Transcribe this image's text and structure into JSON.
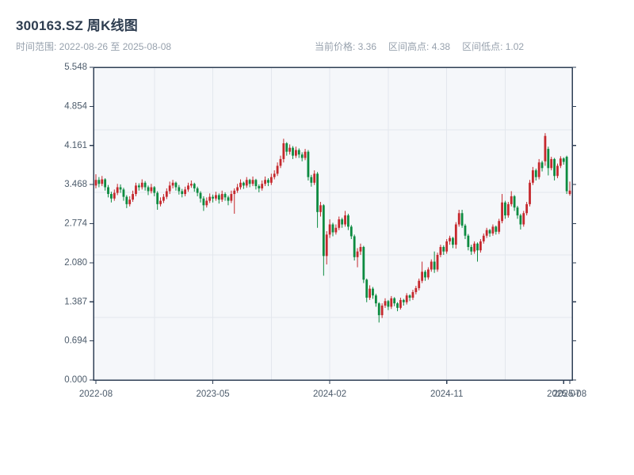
{
  "header": {
    "title": "300163.SZ 周K线图",
    "subtitle": "时间范围: 2022-08-26 至 2025-08-08",
    "stats": [
      "当前价格: 3.36",
      "区间高点: 4.38",
      "区间低点: 1.02"
    ]
  },
  "chart_data": {
    "type": "candlestick",
    "title": "300163.SZ 周K线图",
    "frequency": "weekly",
    "date_range": {
      "start": "2022-08-26",
      "end": "2025-08-08"
    },
    "current_price": 3.36,
    "range_high": 4.38,
    "range_low": 1.02,
    "ylim": [
      0,
      5.548
    ],
    "y_tick_labels": [
      "0.000",
      "0.694",
      "1.387",
      "2.080",
      "2.774",
      "3.468",
      "4.161",
      "4.854",
      "5.548"
    ],
    "x_ticks": [
      {
        "label": "2022-08",
        "week": 0
      },
      {
        "label": "2023-05",
        "week": 38
      },
      {
        "label": "2024-02",
        "week": 76
      },
      {
        "label": "2024-11",
        "week": 114
      },
      {
        "label": "2025-07",
        "week": 152
      },
      {
        "label": "2025-08",
        "week": 154
      }
    ],
    "grid": {
      "v_weeks": [
        19,
        38,
        57,
        76,
        95,
        114,
        133
      ],
      "h_value_fracs": [
        0.2,
        0.4,
        0.6,
        0.8
      ]
    },
    "colors": {
      "up": "#c5282d",
      "down": "#0c8b40",
      "plot_bg": "#f5f7fa",
      "grid": "#e3e7ed",
      "spine": "#2f3f55",
      "tick_label": "#4c5b6b",
      "title": "#2e3d50",
      "muted": "#97a1ad"
    },
    "candles": [
      [
        3.45,
        3.65,
        3.4,
        3.55
      ],
      [
        3.55,
        3.6,
        3.42,
        3.48
      ],
      [
        3.48,
        3.62,
        3.44,
        3.56
      ],
      [
        3.56,
        3.58,
        3.36,
        3.42
      ],
      [
        3.42,
        3.46,
        3.24,
        3.3
      ],
      [
        3.3,
        3.34,
        3.15,
        3.22
      ],
      [
        3.22,
        3.38,
        3.18,
        3.32
      ],
      [
        3.32,
        3.48,
        3.28,
        3.42
      ],
      [
        3.42,
        3.47,
        3.32,
        3.38
      ],
      [
        3.38,
        3.41,
        3.18,
        3.25
      ],
      [
        3.25,
        3.28,
        3.05,
        3.12
      ],
      [
        3.12,
        3.26,
        3.08,
        3.2
      ],
      [
        3.2,
        3.36,
        3.16,
        3.3
      ],
      [
        3.3,
        3.5,
        3.26,
        3.45
      ],
      [
        3.45,
        3.49,
        3.36,
        3.42
      ],
      [
        3.42,
        3.56,
        3.38,
        3.5
      ],
      [
        3.5,
        3.53,
        3.36,
        3.42
      ],
      [
        3.42,
        3.45,
        3.28,
        3.35
      ],
      [
        3.35,
        3.48,
        3.31,
        3.42
      ],
      [
        3.42,
        3.44,
        3.26,
        3.32
      ],
      [
        3.32,
        3.35,
        3.02,
        3.12
      ],
      [
        3.12,
        3.24,
        3.08,
        3.18
      ],
      [
        3.18,
        3.3,
        3.14,
        3.25
      ],
      [
        3.25,
        3.4,
        3.21,
        3.35
      ],
      [
        3.35,
        3.52,
        3.3,
        3.45
      ],
      [
        3.45,
        3.55,
        3.4,
        3.5
      ],
      [
        3.5,
        3.52,
        3.36,
        3.42
      ],
      [
        3.42,
        3.46,
        3.29,
        3.35
      ],
      [
        3.35,
        3.39,
        3.24,
        3.3
      ],
      [
        3.3,
        3.43,
        3.26,
        3.38
      ],
      [
        3.38,
        3.5,
        3.34,
        3.45
      ],
      [
        3.45,
        3.54,
        3.41,
        3.48
      ],
      [
        3.48,
        3.5,
        3.34,
        3.4
      ],
      [
        3.4,
        3.43,
        3.26,
        3.32
      ],
      [
        3.32,
        3.35,
        3.15,
        3.22
      ],
      [
        3.22,
        3.26,
        3.0,
        3.1
      ],
      [
        3.1,
        3.24,
        3.06,
        3.18
      ],
      [
        3.18,
        3.31,
        3.14,
        3.25
      ],
      [
        3.25,
        3.29,
        3.15,
        3.22
      ],
      [
        3.22,
        3.34,
        3.18,
        3.28
      ],
      [
        3.28,
        3.31,
        3.13,
        3.2
      ],
      [
        3.2,
        3.36,
        3.16,
        3.3
      ],
      [
        3.3,
        3.33,
        3.18,
        3.24
      ],
      [
        3.24,
        3.27,
        3.1,
        3.18
      ],
      [
        3.18,
        3.36,
        3.14,
        3.3
      ],
      [
        3.3,
        3.4,
        2.95,
        3.36
      ],
      [
        3.36,
        3.48,
        3.32,
        3.42
      ],
      [
        3.42,
        3.56,
        3.38,
        3.5
      ],
      [
        3.5,
        3.52,
        3.39,
        3.45
      ],
      [
        3.45,
        3.6,
        3.41,
        3.55
      ],
      [
        3.55,
        3.57,
        3.42,
        3.48
      ],
      [
        3.48,
        3.61,
        3.44,
        3.55
      ],
      [
        3.55,
        3.57,
        3.38,
        3.44
      ],
      [
        3.44,
        3.47,
        3.33,
        3.4
      ],
      [
        3.4,
        3.54,
        3.36,
        3.48
      ],
      [
        3.48,
        3.61,
        3.44,
        3.55
      ],
      [
        3.55,
        3.58,
        3.44,
        3.5
      ],
      [
        3.5,
        3.66,
        3.46,
        3.6
      ],
      [
        3.6,
        3.72,
        3.56,
        3.66
      ],
      [
        3.66,
        3.86,
        3.62,
        3.8
      ],
      [
        3.8,
        3.98,
        3.76,
        3.92
      ],
      [
        3.92,
        4.28,
        3.86,
        4.2
      ],
      [
        4.2,
        4.22,
        3.98,
        4.05
      ],
      [
        4.05,
        4.18,
        4.0,
        4.12
      ],
      [
        4.12,
        4.15,
        3.92,
        3.98
      ],
      [
        3.98,
        4.14,
        3.94,
        4.08
      ],
      [
        4.08,
        4.11,
        3.94,
        4.0
      ],
      [
        4.0,
        4.04,
        3.88,
        3.94
      ],
      [
        3.94,
        4.1,
        3.9,
        4.05
      ],
      [
        4.05,
        4.08,
        3.54,
        3.6
      ],
      [
        3.6,
        3.64,
        3.43,
        3.5
      ],
      [
        3.5,
        3.72,
        3.46,
        3.66
      ],
      [
        3.66,
        3.69,
        2.7,
        2.98
      ],
      [
        2.98,
        3.16,
        2.9,
        3.1
      ],
      [
        3.1,
        3.12,
        1.85,
        2.2
      ],
      [
        2.2,
        2.64,
        2.05,
        2.58
      ],
      [
        2.58,
        2.85,
        2.52,
        2.76
      ],
      [
        2.76,
        2.79,
        2.55,
        2.62
      ],
      [
        2.62,
        2.76,
        2.58,
        2.7
      ],
      [
        2.7,
        2.9,
        2.66,
        2.85
      ],
      [
        2.85,
        2.88,
        2.7,
        2.76
      ],
      [
        2.76,
        3.0,
        2.72,
        2.92
      ],
      [
        2.92,
        2.95,
        2.66,
        2.72
      ],
      [
        2.72,
        2.75,
        2.5,
        2.55
      ],
      [
        2.55,
        2.58,
        2.12,
        2.18
      ],
      [
        2.18,
        2.34,
        2.0,
        2.28
      ],
      [
        2.28,
        2.42,
        2.22,
        2.36
      ],
      [
        2.36,
        2.38,
        1.72,
        1.78
      ],
      [
        1.78,
        1.8,
        1.38,
        1.46
      ],
      [
        1.46,
        1.68,
        1.42,
        1.62
      ],
      [
        1.62,
        1.65,
        1.44,
        1.5
      ],
      [
        1.5,
        1.53,
        1.3,
        1.36
      ],
      [
        1.36,
        1.38,
        1.02,
        1.15
      ],
      [
        1.15,
        1.36,
        1.1,
        1.32
      ],
      [
        1.32,
        1.45,
        1.28,
        1.4
      ],
      [
        1.4,
        1.42,
        1.24,
        1.3
      ],
      [
        1.3,
        1.49,
        1.26,
        1.45
      ],
      [
        1.45,
        1.47,
        1.31,
        1.36
      ],
      [
        1.36,
        1.38,
        1.22,
        1.28
      ],
      [
        1.28,
        1.46,
        1.25,
        1.42
      ],
      [
        1.42,
        1.44,
        1.32,
        1.38
      ],
      [
        1.38,
        1.54,
        1.34,
        1.5
      ],
      [
        1.5,
        1.52,
        1.4,
        1.46
      ],
      [
        1.46,
        1.6,
        1.42,
        1.56
      ],
      [
        1.56,
        1.67,
        1.52,
        1.63
      ],
      [
        1.63,
        1.8,
        1.59,
        1.76
      ],
      [
        1.76,
        2.1,
        1.72,
        1.92
      ],
      [
        1.92,
        1.95,
        1.76,
        1.82
      ],
      [
        1.82,
        2.0,
        1.78,
        1.96
      ],
      [
        1.96,
        2.14,
        1.92,
        2.1
      ],
      [
        2.1,
        2.28,
        1.9,
        1.96
      ],
      [
        1.96,
        2.26,
        1.92,
        2.22
      ],
      [
        2.22,
        2.4,
        2.18,
        2.36
      ],
      [
        2.36,
        2.39,
        2.22,
        2.28
      ],
      [
        2.28,
        2.5,
        2.24,
        2.46
      ],
      [
        2.46,
        2.56,
        2.4,
        2.52
      ],
      [
        2.52,
        2.54,
        2.34,
        2.4
      ],
      [
        2.4,
        2.8,
        2.33,
        2.76
      ],
      [
        2.76,
        3.02,
        2.72,
        2.96
      ],
      [
        2.96,
        3.02,
        2.7,
        2.74
      ],
      [
        2.74,
        2.77,
        2.5,
        2.56
      ],
      [
        2.56,
        2.59,
        2.3,
        2.36
      ],
      [
        2.36,
        2.4,
        2.22,
        2.28
      ],
      [
        2.28,
        2.46,
        2.24,
        2.42
      ],
      [
        2.42,
        2.44,
        2.1,
        2.3
      ],
      [
        2.3,
        2.5,
        2.26,
        2.46
      ],
      [
        2.46,
        2.6,
        2.42,
        2.56
      ],
      [
        2.56,
        2.7,
        2.52,
        2.66
      ],
      [
        2.66,
        2.68,
        2.54,
        2.6
      ],
      [
        2.6,
        2.76,
        2.56,
        2.72
      ],
      [
        2.72,
        2.74,
        2.58,
        2.63
      ],
      [
        2.63,
        2.86,
        2.59,
        2.82
      ],
      [
        2.82,
        3.3,
        2.78,
        3.15
      ],
      [
        3.15,
        3.18,
        2.86,
        2.92
      ],
      [
        2.92,
        3.16,
        2.88,
        3.12
      ],
      [
        3.12,
        3.35,
        3.08,
        3.26
      ],
      [
        3.26,
        3.28,
        3.0,
        3.06
      ],
      [
        3.06,
        3.09,
        2.86,
        2.92
      ],
      [
        2.92,
        2.95,
        2.67,
        2.76
      ],
      [
        2.76,
        3.0,
        2.72,
        2.96
      ],
      [
        2.96,
        3.16,
        2.92,
        3.12
      ],
      [
        3.12,
        3.55,
        3.08,
        3.5
      ],
      [
        3.5,
        3.78,
        3.46,
        3.72
      ],
      [
        3.72,
        3.75,
        3.54,
        3.6
      ],
      [
        3.6,
        3.92,
        3.56,
        3.86
      ],
      [
        3.86,
        3.89,
        3.7,
        3.76
      ],
      [
        3.88,
        4.38,
        3.8,
        4.33
      ],
      [
        4.1,
        4.14,
        3.63,
        3.76
      ],
      [
        3.76,
        3.96,
        3.72,
        3.92
      ],
      [
        3.92,
        3.94,
        3.54,
        3.62
      ],
      [
        3.62,
        3.84,
        3.58,
        3.8
      ],
      [
        3.8,
        3.97,
        3.76,
        3.93
      ],
      [
        3.93,
        3.95,
        3.82,
        3.87
      ],
      [
        3.96,
        3.98,
        3.3,
        3.35
      ],
      [
        3.3,
        3.52,
        3.27,
        3.36
      ]
    ]
  }
}
